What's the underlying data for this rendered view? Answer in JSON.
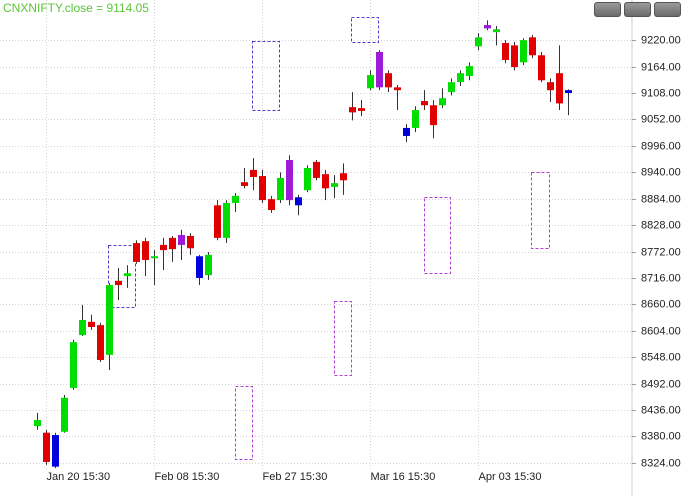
{
  "chart_data": {
    "type": "candlestick",
    "title": "CNXNIFTY.close = 9114.05",
    "categories": [
      null,
      "Jan 20 15:30",
      null,
      null,
      null,
      null,
      null,
      null,
      null,
      null,
      null,
      null,
      null,
      "Feb 08 15:30",
      null,
      null,
      null,
      null,
      null,
      null,
      null,
      null,
      null,
      null,
      null,
      "Feb 27 15:30",
      null,
      null,
      null,
      null,
      null,
      null,
      null,
      null,
      null,
      null,
      null,
      "Mar 16 15:30",
      null,
      null,
      null,
      null,
      null,
      null,
      null,
      null,
      null,
      null,
      null,
      "Apr 03 15:30",
      null,
      null,
      null,
      null,
      null,
      null,
      null,
      null,
      null,
      null
    ],
    "open": [
      8402,
      8388,
      8383,
      8390,
      8483,
      8595,
      8623,
      8616,
      8553,
      8710,
      8720,
      8790,
      8794,
      8758,
      8786,
      8801,
      8786,
      8805,
      8762,
      8722,
      8870,
      8801,
      8875,
      8919,
      8945,
      8932,
      8883,
      8881,
      8881,
      8887,
      8902,
      8962,
      8936,
      8909,
      8938,
      9078,
      9076,
      9118,
      9120,
      9150,
      9120,
      9034,
      9034,
      9091,
      9082,
      9082,
      9110,
      9131,
      9144,
      9207,
      9245,
      9237,
      9214,
      9209,
      9173,
      9226,
      9188,
      9131,
      9150,
      9108
    ],
    "high": [
      8430,
      8394,
      8388,
      8468,
      8585,
      8659,
      8638,
      8621,
      8705,
      8737,
      8743,
      8796,
      8801,
      8775,
      8801,
      8805,
      8818,
      8811,
      8765,
      8771,
      8881,
      8881,
      8896,
      8949,
      8970,
      8945,
      8890,
      8940,
      8976,
      8892,
      8955,
      8966,
      8945,
      8934,
      8959,
      9110,
      9093,
      9156,
      9199,
      9156,
      9125,
      9042,
      9080,
      9114,
      9093,
      9118,
      9139,
      9156,
      9173,
      9235,
      9262,
      9250,
      9220,
      9216,
      9224,
      9231,
      9195,
      9139,
      9209,
      9116
    ],
    "low": [
      8394,
      8320,
      8313,
      8388,
      8479,
      8593,
      8606,
      8538,
      8521,
      8669,
      8695,
      8746,
      8720,
      8701,
      8733,
      8750,
      8754,
      8765,
      8701,
      8712,
      8796,
      8790,
      8856,
      8906,
      8902,
      8875,
      8854,
      8875,
      8870,
      8849,
      8898,
      8923,
      8881,
      8885,
      8892,
      9050,
      9059,
      9114,
      9114,
      9110,
      9072,
      9004,
      9025,
      9072,
      9012,
      9076,
      9103,
      9123,
      9135,
      9199,
      9241,
      9209,
      9171,
      9156,
      9167,
      9182,
      9131,
      9089,
      9072,
      9061
    ],
    "close": [
      8415,
      8326,
      8316,
      8462,
      8580,
      8627,
      8612,
      8542,
      8701,
      8701,
      8726,
      8750,
      8754,
      8762,
      8775,
      8777,
      8807,
      8779,
      8716,
      8765,
      8801,
      8875,
      8890,
      8911,
      8930,
      8881,
      8860,
      8928,
      8966,
      8870,
      8949,
      8928,
      8906,
      8917,
      8923,
      9067,
      9070,
      9146,
      9195,
      9120,
      9114,
      9017,
      9072,
      9082,
      9040,
      9097,
      9131,
      9150,
      9165,
      9226,
      9252,
      9243,
      9178,
      9163,
      9220,
      9188,
      9135,
      9114,
      9086,
      9114.05
    ],
    "colors": [
      "#00dd00",
      "#e00000",
      "#0000dd",
      "#00dd00",
      "#00dd00",
      "#00dd00",
      "#e00000",
      "#e00000",
      "#00dd00",
      "#e00000",
      "#00dd00",
      "#e00000",
      "#e00000",
      "#00dd00",
      "#e00000",
      "#e00000",
      "#9b1bd8",
      "#e00000",
      "#0000dd",
      "#00dd00",
      "#e00000",
      "#00dd00",
      "#00dd00",
      "#e00000",
      "#e00000",
      "#e00000",
      "#e00000",
      "#00dd00",
      "#9b1bd8",
      "#0000dd",
      "#00dd00",
      "#e00000",
      "#e00000",
      "#00dd00",
      "#e00000",
      "#e00000",
      "#e00000",
      "#00dd00",
      "#9b1bd8",
      "#e00000",
      "#e00000",
      "#0000dd",
      "#00dd00",
      "#e00000",
      "#e00000",
      "#00dd00",
      "#00dd00",
      "#00dd00",
      "#00dd00",
      "#00dd00",
      "#9b1bd8",
      "#00dd00",
      "#e00000",
      "#e00000",
      "#00dd00",
      "#e00000",
      "#e00000",
      "#e00000",
      "#e00000",
      "#0000dd"
    ],
    "wick_color": "#333333",
    "title_color": "#5cc43a",
    "ylim": [
      8292,
      9267
    ],
    "yticks": [
      {
        "value": 8324,
        "label": "8324.00"
      },
      {
        "value": 8380,
        "label": "8380.00"
      },
      {
        "value": 8436,
        "label": "8436.00"
      },
      {
        "value": 8492,
        "label": "8492.00"
      },
      {
        "value": 8548,
        "label": "8548.00"
      },
      {
        "value": 8604,
        "label": "8604.00"
      },
      {
        "value": 8660,
        "label": "8660.00"
      },
      {
        "value": 8716,
        "label": "8716.00"
      },
      {
        "value": 8772,
        "label": "8772.00"
      },
      {
        "value": 8828,
        "label": "8828.00"
      },
      {
        "value": 8884,
        "label": "8884.00"
      },
      {
        "value": 8940,
        "label": "8940.00"
      },
      {
        "value": 8996,
        "label": "8996.00"
      },
      {
        "value": 9052,
        "label": "9052.00"
      },
      {
        "value": 9108,
        "label": "9108.00"
      },
      {
        "value": 9164,
        "label": "9164.00"
      },
      {
        "value": 9220,
        "label": "9220.00"
      }
    ],
    "grid": true
  }
}
